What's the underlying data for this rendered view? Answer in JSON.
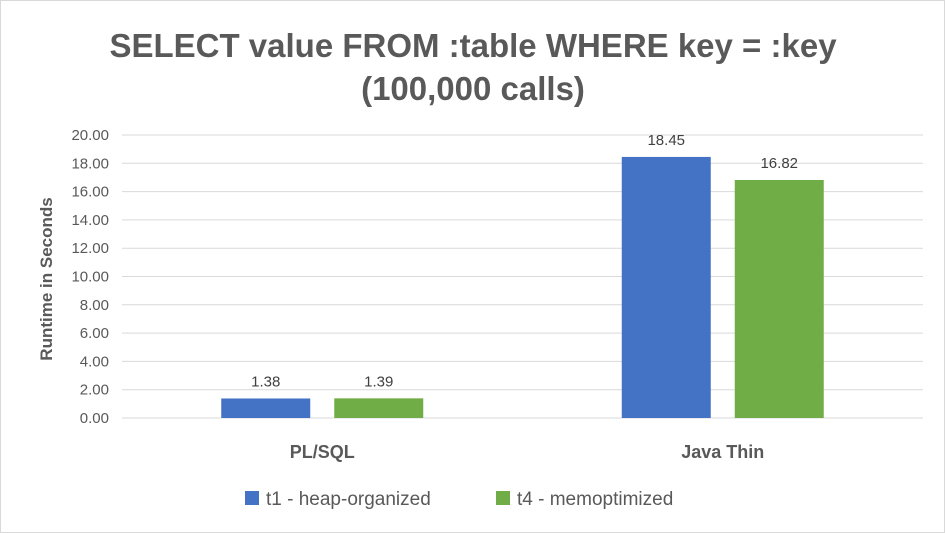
{
  "chart_data": {
    "type": "bar",
    "title_lines": [
      "SELECT value FROM :table WHERE key = :key",
      "(100,000 calls)"
    ],
    "xlabel": "",
    "ylabel": "Runtime in Seconds",
    "categories": [
      "PL/SQL",
      "Java Thin"
    ],
    "series": [
      {
        "name": "t1 - heap-organized",
        "values": [
          1.38,
          18.45
        ],
        "labels": [
          "1.38",
          "18.45"
        ],
        "color": "#4472c4"
      },
      {
        "name": "t4 - memoptimized",
        "values": [
          1.39,
          16.82
        ],
        "labels": [
          "1.39",
          "16.82"
        ],
        "color": "#70ad47"
      }
    ],
    "ylim": [
      0,
      20
    ],
    "yticks": [
      0,
      2,
      4,
      6,
      8,
      10,
      12,
      14,
      16,
      18,
      20
    ],
    "ytick_labels": [
      "0.00",
      "2.00",
      "4.00",
      "6.00",
      "8.00",
      "10.00",
      "12.00",
      "14.00",
      "16.00",
      "18.00",
      "20.00"
    ],
    "grid": true,
    "legend_position": "bottom",
    "gridline_color": "#d9d9d9",
    "text_color": "#595959"
  }
}
